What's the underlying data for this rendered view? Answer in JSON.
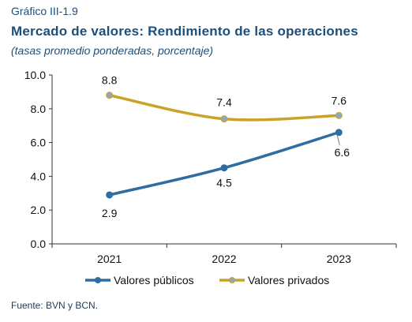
{
  "header": {
    "label": "Gráfico III-1.9",
    "title": "Mercado de valores: Rendimiento de las operaciones",
    "subtitle": "(tasas promedio ponderadas, porcentaje)"
  },
  "source": "Fuente: BVN y BCN.",
  "chart_data": {
    "type": "line",
    "categories": [
      "2021",
      "2022",
      "2023"
    ],
    "ylim": [
      0,
      10
    ],
    "yticks": [
      "0.0",
      "2.0",
      "4.0",
      "6.0",
      "8.0",
      "10.0"
    ],
    "grid": false,
    "legend": "bottom",
    "series": [
      {
        "name": "Valores públicos",
        "values": [
          2.9,
          4.5,
          6.6
        ],
        "labels": [
          "2.9",
          "4.5",
          "6.6"
        ],
        "color": "#2e6da4"
      },
      {
        "name": "Valores privados",
        "values": [
          8.8,
          7.4,
          7.6
        ],
        "labels": [
          "8.8",
          "7.4",
          "7.6"
        ],
        "color": "#c9a227"
      }
    ]
  }
}
